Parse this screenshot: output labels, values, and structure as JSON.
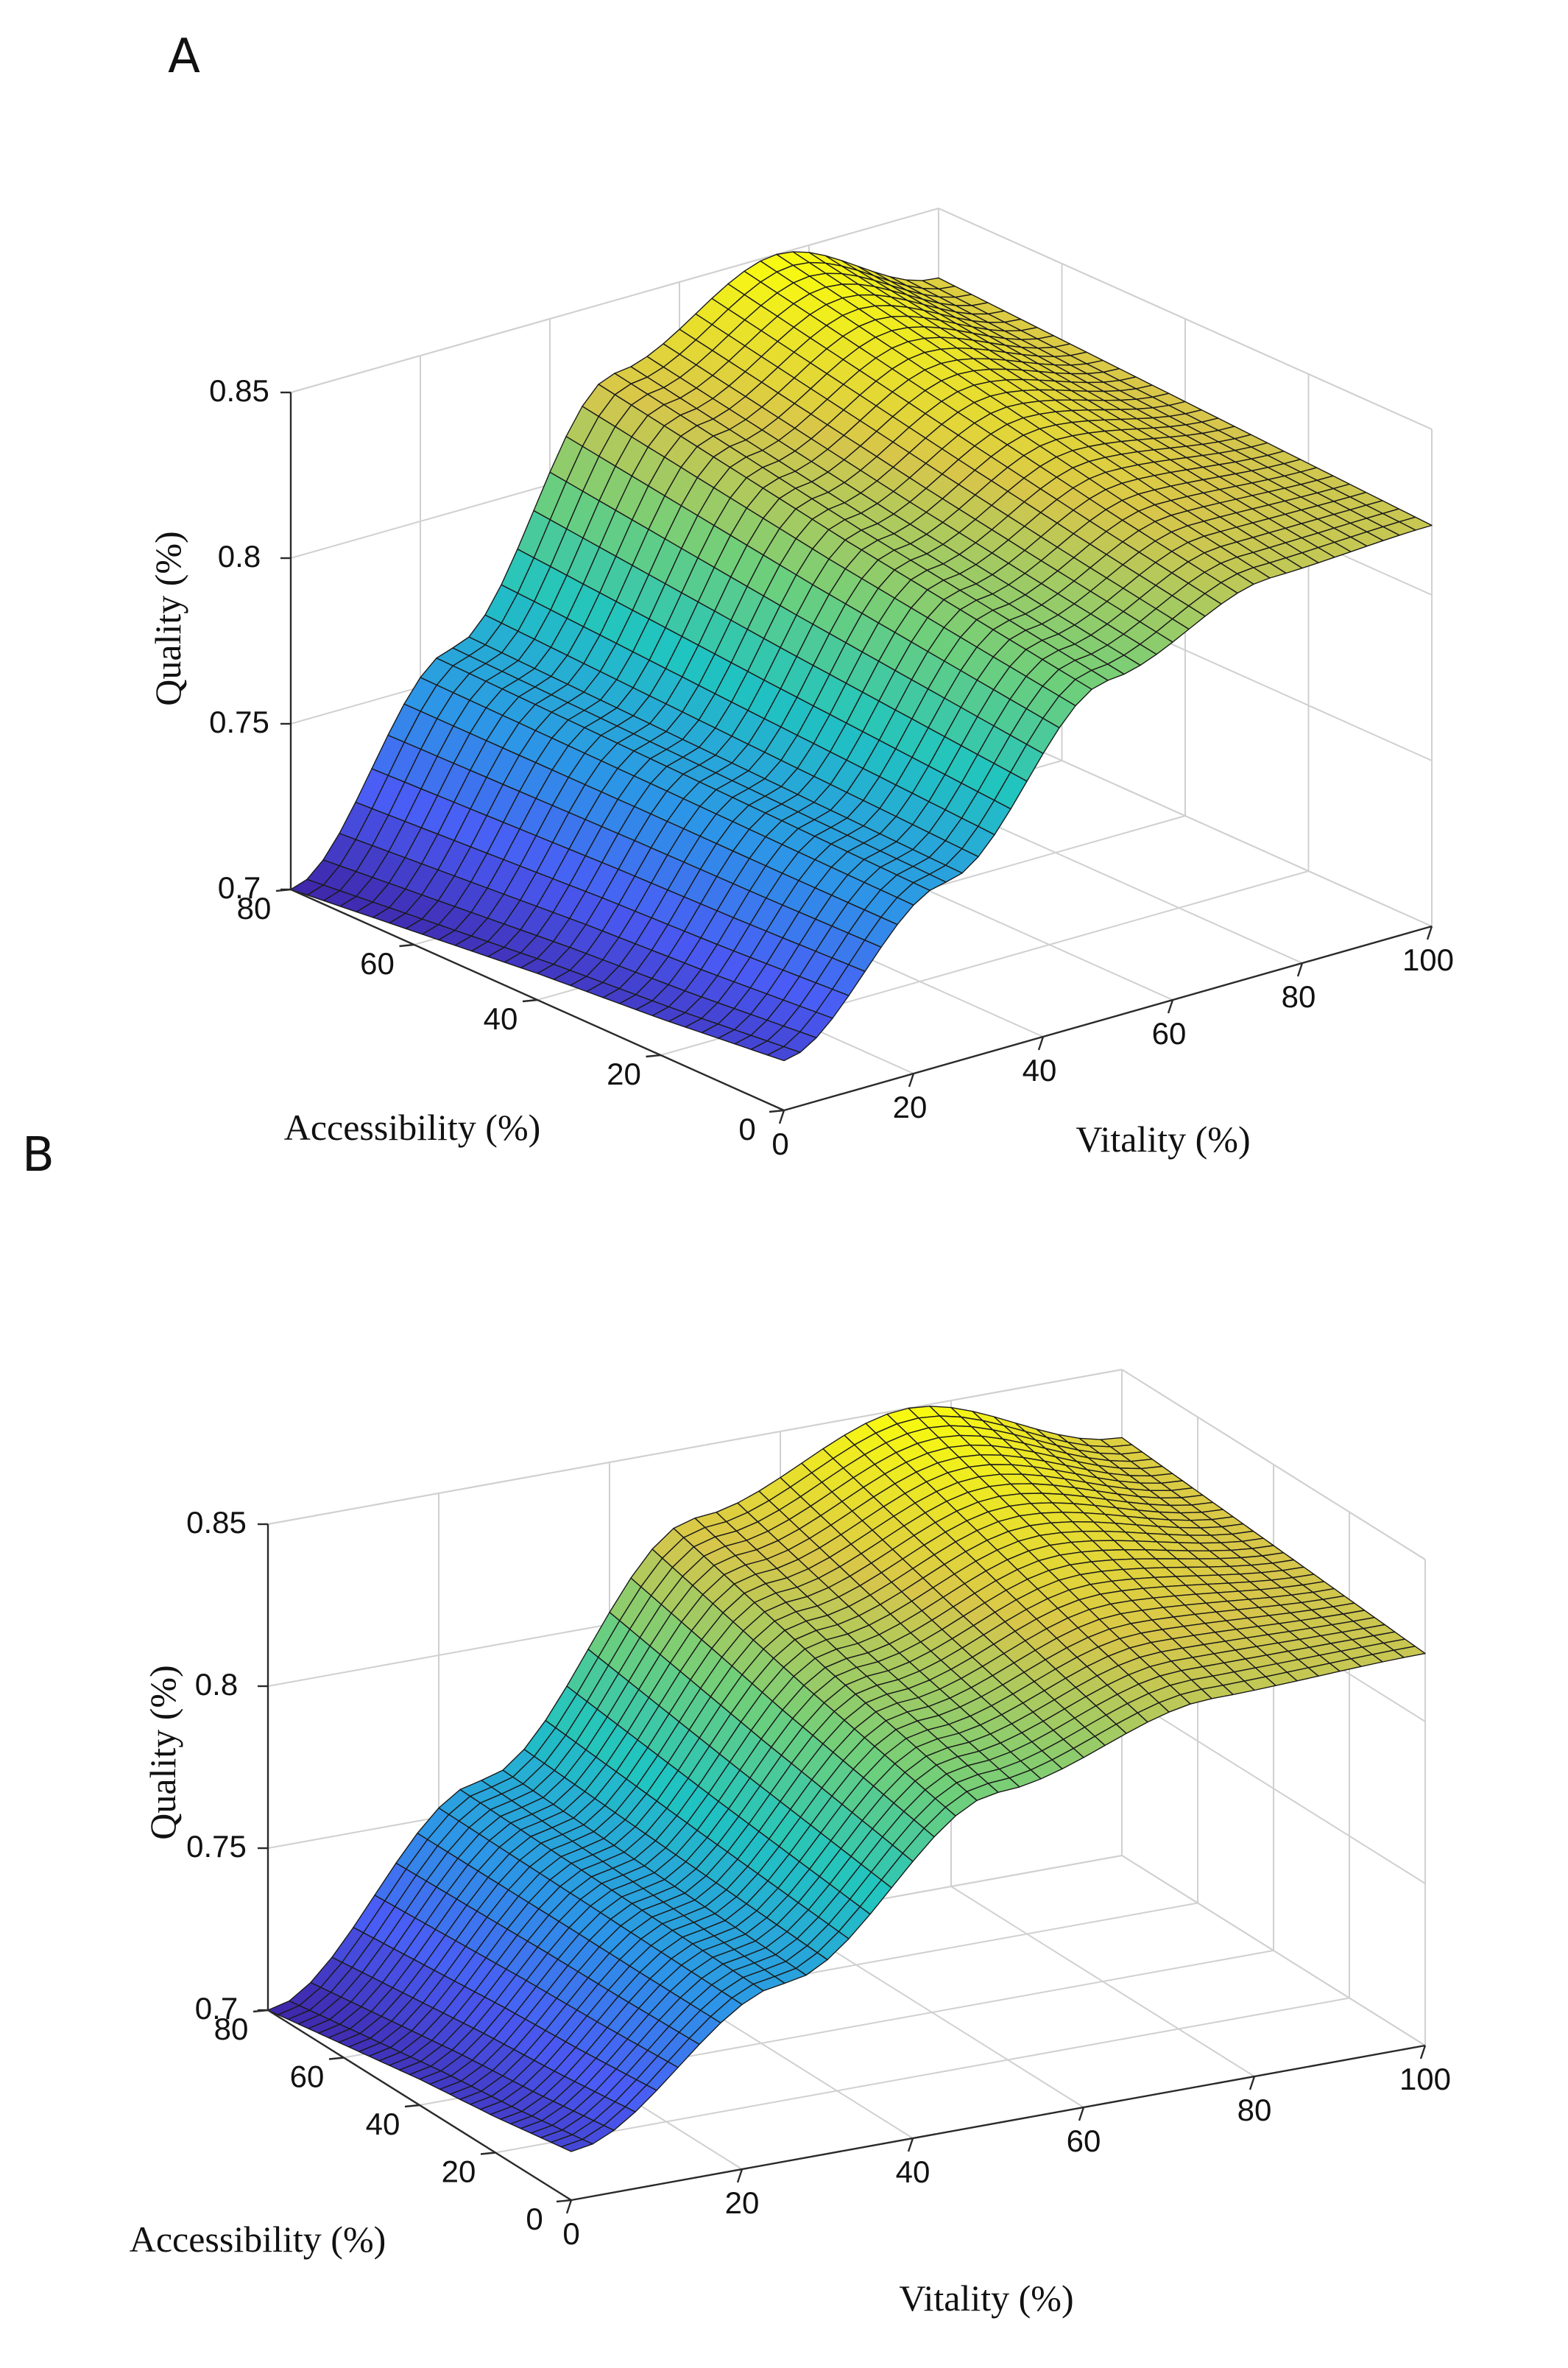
{
  "chart_data": [
    {
      "panel": "A",
      "type": "surface",
      "title": "",
      "xlabel": "Vitality (%)",
      "ylabel": "Accessibility (%)",
      "zlabel": "Quality (%)",
      "xlim": [
        0,
        100
      ],
      "ylim": [
        0,
        80
      ],
      "zlim": [
        0.7,
        0.85
      ],
      "xticks": [
        "0",
        "20",
        "40",
        "60",
        "80",
        "100"
      ],
      "yticks": [
        "0",
        "20",
        "40",
        "60",
        "80"
      ],
      "zticks": [
        "0.7",
        "0.75",
        "0.8",
        "0.85"
      ],
      "grid": true,
      "colormap": [
        "#3e26a8",
        "#4a5cf5",
        "#2c97e6",
        "#20c4c0",
        "#6ecf7b",
        "#d8c64a",
        "#f9fb0e"
      ],
      "grid_points": {
        "vitality": [
          0,
          25,
          50,
          75,
          100
        ],
        "accessibility": [
          0,
          20,
          40,
          60,
          80
        ]
      },
      "quality": [
        [
          0.715,
          0.755,
          0.802,
          0.819,
          0.821
        ],
        [
          0.711,
          0.756,
          0.808,
          0.826,
          0.823
        ],
        [
          0.708,
          0.757,
          0.814,
          0.834,
          0.825
        ],
        [
          0.704,
          0.758,
          0.821,
          0.842,
          0.827
        ],
        [
          0.7,
          0.759,
          0.828,
          0.85,
          0.829
        ]
      ]
    },
    {
      "panel": "B",
      "type": "surface",
      "title": "",
      "xlabel": "Vitality (%)",
      "ylabel": "Accessibility (%)",
      "zlabel": "Quality (%)",
      "xlim": [
        0,
        100
      ],
      "ylim": [
        0,
        80
      ],
      "zlim": [
        0.7,
        0.85
      ],
      "xticks": [
        "0",
        "20",
        "40",
        "60",
        "80",
        "100"
      ],
      "yticks": [
        "0",
        "20",
        "40",
        "60",
        "80"
      ],
      "zticks": [
        "0.7",
        "0.75",
        "0.8",
        "0.85"
      ],
      "grid": true,
      "colormap": [
        "#3e26a8",
        "#4a5cf5",
        "#2c97e6",
        "#20c4c0",
        "#6ecf7b",
        "#d8c64a",
        "#f9fb0e"
      ],
      "grid_points": {
        "vitality": [
          0,
          25,
          50,
          75,
          100
        ],
        "accessibility": [
          0,
          20,
          40,
          60,
          80
        ]
      },
      "quality": [
        [
          0.715,
          0.755,
          0.802,
          0.819,
          0.821
        ],
        [
          0.711,
          0.756,
          0.808,
          0.826,
          0.823
        ],
        [
          0.708,
          0.757,
          0.814,
          0.834,
          0.825
        ],
        [
          0.704,
          0.758,
          0.821,
          0.842,
          0.827
        ],
        [
          0.7,
          0.759,
          0.828,
          0.85,
          0.829
        ]
      ]
    }
  ]
}
